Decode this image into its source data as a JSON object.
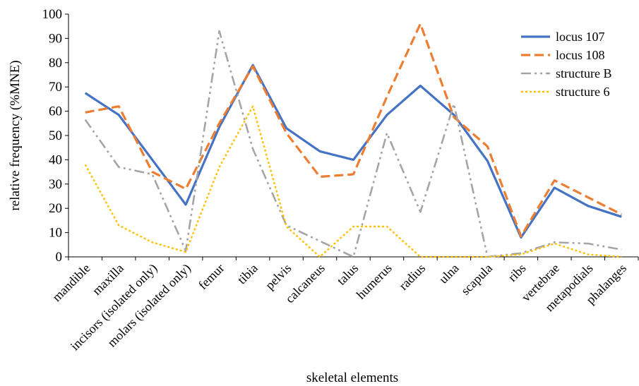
{
  "chart_data": {
    "type": "line",
    "title": "",
    "xlabel": "skeletal elements",
    "ylabel": "relative frequency (%MNE)",
    "ylim": [
      0,
      100
    ],
    "yticks": [
      0,
      10,
      20,
      30,
      40,
      50,
      60,
      70,
      80,
      90,
      100
    ],
    "grid": false,
    "legend_position": "top-right",
    "categories": [
      "mandible",
      "maxilla",
      "incisors (isolated only)",
      "molars (isolated only)",
      "femur",
      "tibia",
      "pelvis",
      "calcaneus",
      "talus",
      "humerus",
      "radius",
      "ulna",
      "scapula",
      "ribs",
      "vertebrae",
      "metapodials",
      "phalanges"
    ],
    "series": [
      {
        "name": "locus 107",
        "color": "#4472C4",
        "dash": "solid",
        "values": [
          67.5,
          58.5,
          40,
          21.5,
          53.5,
          79,
          53,
          43.5,
          40,
          58.5,
          70.5,
          58.5,
          39.5,
          8,
          28.5,
          21,
          16.5
        ]
      },
      {
        "name": "locus 108",
        "color": "#ED7D31",
        "dash": "dash",
        "values": [
          59.5,
          62,
          35,
          28,
          55,
          78.5,
          51,
          33,
          34,
          66,
          96,
          57.5,
          45.5,
          8.5,
          31.5,
          24.5,
          17.5
        ]
      },
      {
        "name": "structure B",
        "color": "#A5A5A5",
        "dash": "dashdotdot",
        "values": [
          56.5,
          37,
          34,
          2.5,
          93,
          44.5,
          13,
          6.5,
          0,
          51,
          18.5,
          63,
          0,
          1.5,
          6,
          5.5,
          3
        ]
      },
      {
        "name": "structure 6",
        "color": "#FFC000",
        "dash": "dot",
        "values": [
          38,
          13,
          6,
          2,
          37,
          62,
          12.5,
          0,
          12.5,
          12.5,
          0,
          0,
          0,
          1,
          5.5,
          1,
          0
        ]
      }
    ]
  }
}
